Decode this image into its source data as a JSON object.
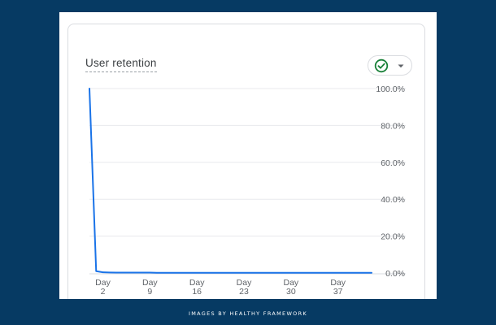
{
  "card": {
    "title": "User retention"
  },
  "status_selector": {
    "icon": "check-circle-icon",
    "caret_icon": "caret-down-icon",
    "color": "#188038"
  },
  "chart_data": {
    "type": "line",
    "title": "User retention",
    "xlabel": "",
    "ylabel": "",
    "x": [
      0,
      1,
      2,
      3,
      4,
      5,
      6,
      7,
      8,
      9,
      10,
      11,
      12,
      13,
      14,
      15,
      16,
      17,
      18,
      19,
      20,
      21,
      22,
      23,
      24,
      25,
      26,
      27,
      28,
      29,
      30,
      31,
      32,
      33,
      34,
      35,
      36,
      37,
      38,
      39,
      40,
      41,
      42
    ],
    "series": [
      {
        "values": [
          100,
          1,
          0.4,
          0.3,
          0.2,
          0.2,
          0.2,
          0.2,
          0.2,
          0.2,
          0.1,
          0.1,
          0.1,
          0.1,
          0.1,
          0.1,
          0.1,
          0.1,
          0.1,
          0.1,
          0.1,
          0.1,
          0.1,
          0.1,
          0.1,
          0.1,
          0.1,
          0.1,
          0.1,
          0.1,
          0.1,
          0.1,
          0.1,
          0.1,
          0.1,
          0.1,
          0.1,
          0.1,
          0.1,
          0.1,
          0.1,
          0.1,
          0.1
        ],
        "color": "#1a73e8"
      }
    ],
    "x_ticks": [
      {
        "value": 2,
        "line1": "Day",
        "line2": "2"
      },
      {
        "value": 9,
        "line1": "Day",
        "line2": "9"
      },
      {
        "value": 16,
        "line1": "Day",
        "line2": "16"
      },
      {
        "value": 23,
        "line1": "Day",
        "line2": "23"
      },
      {
        "value": 30,
        "line1": "Day",
        "line2": "30"
      },
      {
        "value": 37,
        "line1": "Day",
        "line2": "37"
      }
    ],
    "y_ticks": [
      "100.0%",
      "80.0%",
      "60.0%",
      "40.0%",
      "20.0%",
      "0.0%"
    ],
    "xlim": [
      0,
      42
    ],
    "ylim": [
      0,
      100
    ],
    "y_axis_position": "right",
    "grid": true
  },
  "footer": {
    "credit": "IMAGES BY HEALTHY FRAMEWORK"
  }
}
